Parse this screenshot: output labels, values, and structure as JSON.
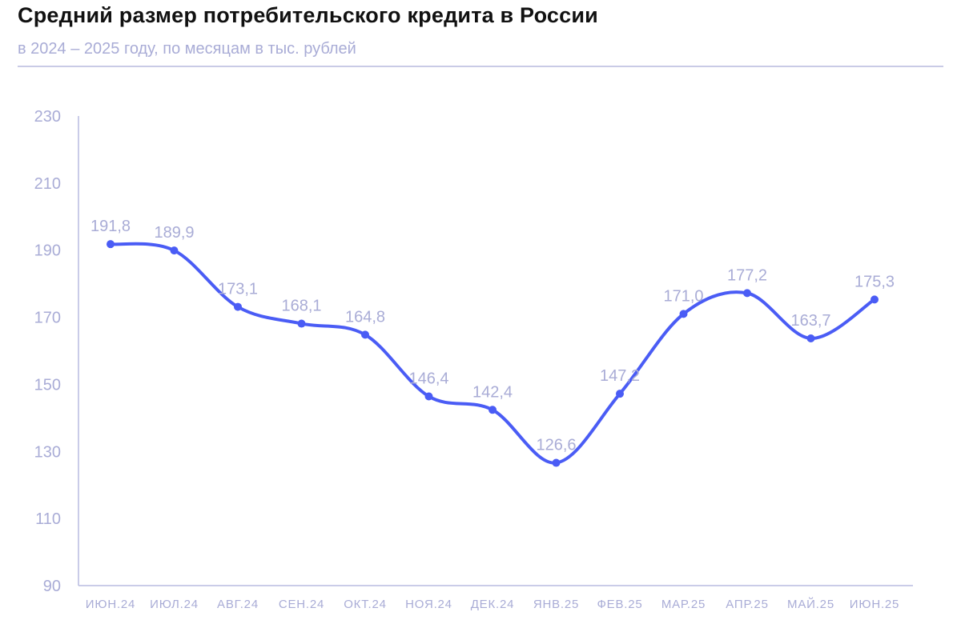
{
  "title": "Средний размер потребительского кредита в России",
  "subtitle": "в 2024 – 2025 году, по месяцам в тыс. рублей",
  "colors": {
    "line": "#4a5cf5",
    "text": "#a9acd6",
    "axis": "#b8bce0"
  },
  "chart_data": {
    "type": "line",
    "title": "Средний размер потребительского кредита в России",
    "xlabel": "",
    "ylabel": "",
    "ylim": [
      90,
      230
    ],
    "yticks": [
      "90",
      "110",
      "130",
      "150",
      "170",
      "190",
      "210",
      "230"
    ],
    "yticks_values": [
      90,
      110,
      130,
      150,
      170,
      190,
      210,
      230
    ],
    "categories": [
      "ИЮН.24",
      "ИЮЛ.24",
      "АВГ.24",
      "СЕН.24",
      "ОКТ.24",
      "НОЯ.24",
      "ДЕК.24",
      "ЯНВ.25",
      "ФЕВ.25",
      "МАР.25",
      "АПР.25",
      "МАЙ.25",
      "ИЮН.25"
    ],
    "values": [
      191.8,
      189.9,
      173.1,
      168.1,
      164.8,
      146.4,
      142.4,
      126.6,
      147.2,
      171.0,
      177.2,
      163.7,
      175.3
    ],
    "labels": [
      "191,8",
      "189,9",
      "173,1",
      "168,1",
      "164,8",
      "146,4",
      "142,4",
      "126,6",
      "147,2",
      "171,0",
      "177,2",
      "163,7",
      "175,3"
    ],
    "grid": false,
    "smooth": true
  }
}
